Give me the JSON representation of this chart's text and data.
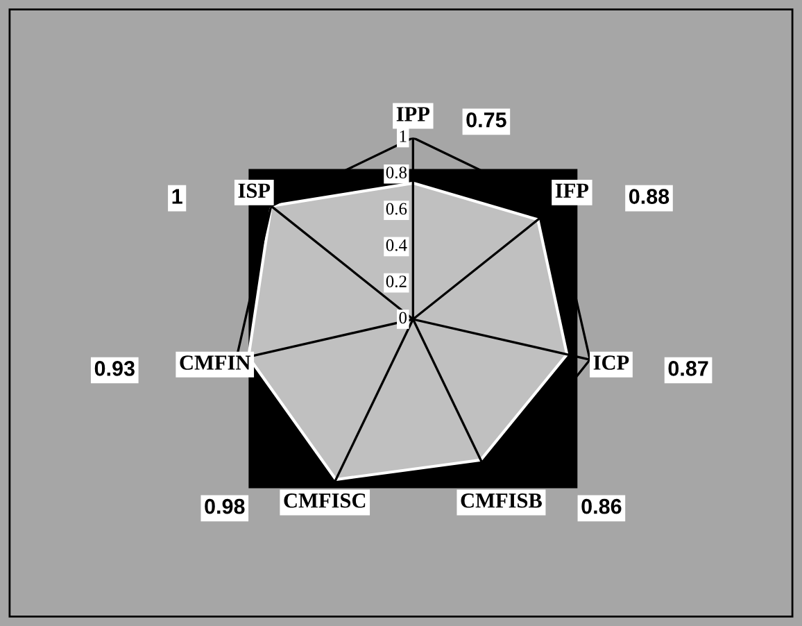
{
  "chart_data": {
    "type": "radar",
    "categories": [
      "IPP",
      "IFP",
      "ICP",
      "CMFISB",
      "CMFISC",
      "CMFIN",
      "ISP"
    ],
    "series": [
      {
        "color": "#c0c0c0",
        "values": [
          0.75,
          0.88,
          0.87,
          0.86,
          0.98,
          0.93,
          1
        ]
      }
    ],
    "value_labels": [
      "0.75",
      "0.88",
      "0.87",
      "0.86",
      "0.98",
      "0.93",
      "1"
    ],
    "ylim": [
      0,
      1
    ],
    "yticks": [
      0,
      0.2,
      0.4,
      0.6,
      0.8,
      1
    ],
    "grid": true
  }
}
